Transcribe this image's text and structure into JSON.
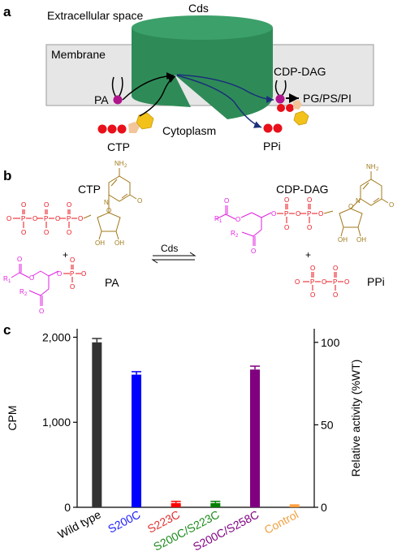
{
  "panel_a": {
    "label": "a",
    "extracellular": "Extracellular space",
    "membrane": "Membrane",
    "cytoplasm": "Cytoplasm",
    "cds": "Cds",
    "pa": "PA",
    "cdp_dag": "CDP-DAG",
    "pg_ps_pi": "PG/PS/PI",
    "ctp": "CTP",
    "ppi": "PPi",
    "colors": {
      "cylinder": "#2e8b57",
      "membrane": "#e6e6e6",
      "phosphate": "#e8101a",
      "sugar": "#f3c59a",
      "base": "#f2c21a",
      "headgroup": "#b0148c",
      "arrow_blue": "#1b2f7a"
    }
  },
  "panel_b": {
    "label": "b",
    "ctp": "CTP",
    "cdp_dag": "CDP-DAG",
    "pa": "PA",
    "ppi": "PPi",
    "cds": "Cds",
    "plus": "+",
    "r1": "R",
    "r2": "R",
    "r1_sub": "1",
    "r2_sub": "2",
    "p": "P",
    "o": "O",
    "o_minus": "O",
    "nh2": "NH",
    "nh2_sub": "2",
    "n": "N",
    "oh": "OH",
    "colors": {
      "phosphate": "#e8101a",
      "lipid": "#e020e0",
      "nucleoside": "#a07818"
    }
  },
  "panel_c": {
    "label": "c",
    "chart_data": {
      "type": "bar",
      "categories": [
        "Wild type",
        "S200C",
        "S223C",
        "S200C/S223C",
        "S200C/S258C",
        "Control"
      ],
      "category_colors": [
        "#000000",
        "#1a1aff",
        "#e03030",
        "#1a8a1a",
        "#800080",
        "#f0a040"
      ],
      "bar_colors": [
        "#333333",
        "#0000ff",
        "#ff0000",
        "#008000",
        "#800080",
        "#ff9933"
      ],
      "values": [
        1940,
        1560,
        50,
        50,
        1620,
        20
      ],
      "errors": [
        45,
        35,
        20,
        20,
        40,
        8
      ],
      "ylabel": "CPM",
      "ylabel_right": "Relative activity (%WT)",
      "ylim": [
        0,
        2100
      ],
      "y_ticks": [
        0,
        1000,
        2000
      ],
      "y_tick_labels": [
        "0",
        "1,000",
        "2,000"
      ],
      "y2_ticks": [
        0,
        50,
        100
      ],
      "y2_tick_labels": [
        "0",
        "50",
        "100"
      ]
    }
  }
}
